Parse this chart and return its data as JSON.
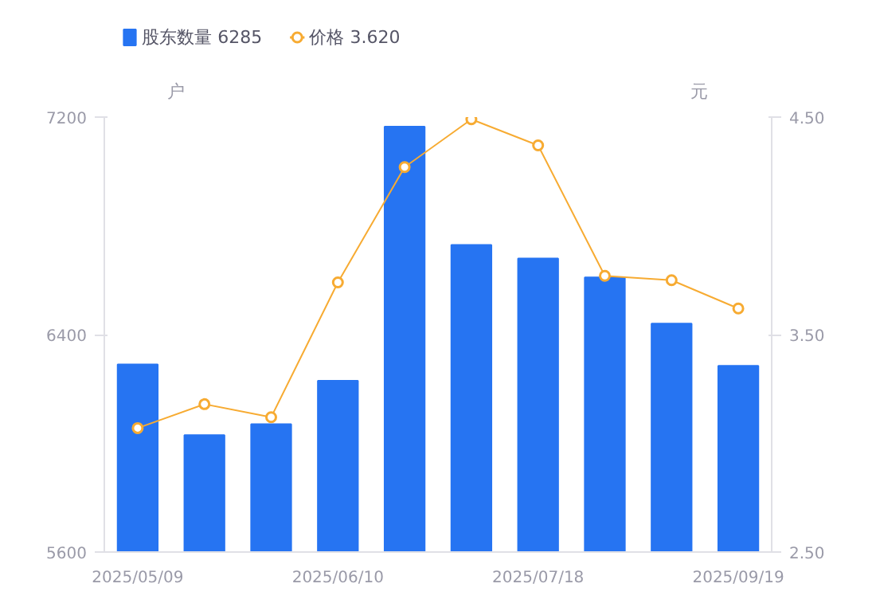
{
  "chart_data": {
    "type": "bar",
    "ylabel": "户",
    "y2label": "元",
    "categories": [
      "2025/05/09",
      null,
      null,
      "2025/06/10",
      null,
      null,
      "2025/07/18",
      null,
      null,
      "2025/09/19"
    ],
    "series": [
      {
        "name": "股东数量 6285",
        "color": "#2674f2",
        "values": [
          6290,
          6030,
          6070,
          6230,
          7165,
          6730,
          6680,
          6610,
          6440,
          6285
        ]
      },
      {
        "name": "价格 3.620",
        "type": "line",
        "axis": "y2",
        "color": "#f7ab32",
        "marker": "circle",
        "values": [
          3.07,
          3.18,
          3.12,
          3.74,
          4.27,
          4.49,
          4.37,
          3.77,
          3.75,
          3.62
        ]
      }
    ],
    "ylim": [
      5600,
      7200
    ],
    "yticks": [
      5600,
      6400,
      7200
    ],
    "y2lim": [
      2.5,
      4.5
    ],
    "y2ticks": [
      {
        "value": 2.5,
        "label": "2.50"
      },
      {
        "value": 3.5,
        "label": "3.50"
      },
      {
        "value": 4.5,
        "label": "4.50"
      }
    ],
    "grid": false,
    "legend": "top left"
  }
}
